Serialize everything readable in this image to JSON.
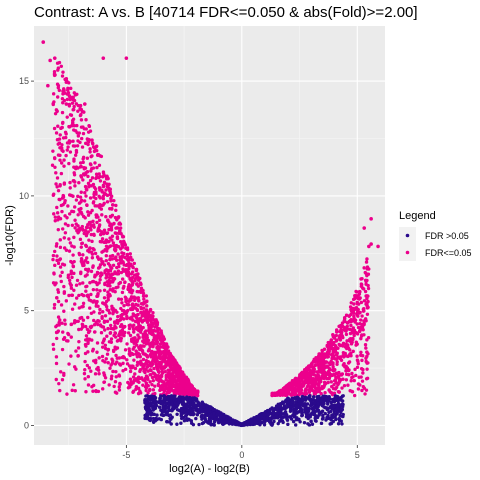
{
  "chart_data": {
    "type": "scatter",
    "title": "Contrast: A vs. B [40714 FDR<=0.050 & abs(Fold)>=2.00]",
    "xlabel": "log2(A) - log2(B)",
    "ylabel": "-log10(FDR)",
    "xlim": [
      -9.0,
      6.2
    ],
    "ylim": [
      -0.85,
      17.4
    ],
    "x_ticks": [
      -5,
      0,
      5
    ],
    "x_tick_labels": [
      "-5",
      "0",
      "5"
    ],
    "y_ticks": [
      0,
      5,
      10,
      15
    ],
    "y_tick_labels": [
      "0",
      "5",
      "10",
      "15"
    ],
    "grid": true,
    "legend": {
      "title": "Legend",
      "position": "right"
    },
    "fdr_threshold_neglog10": 1.3,
    "series": [
      {
        "name": "FDR >0.05",
        "color": "#2a0a8c",
        "envelope": [
          [
            -4.0,
            1.3
          ],
          [
            -3.0,
            1.3
          ],
          [
            -2.0,
            1.2
          ],
          [
            -1.0,
            0.6
          ],
          [
            0.0,
            0.05
          ],
          [
            1.0,
            0.6
          ],
          [
            2.0,
            1.2
          ],
          [
            3.0,
            1.3
          ],
          [
            4.3,
            1.3
          ]
        ],
        "points": []
      },
      {
        "name": "FDR<=0.05",
        "color": "#ec008c",
        "envelope_left": [
          [
            -8.0,
            16.0
          ],
          [
            -7.0,
            14.2
          ],
          [
            -6.0,
            11.5
          ],
          [
            -5.0,
            8.0
          ],
          [
            -4.0,
            5.3
          ],
          [
            -3.0,
            3.0
          ],
          [
            -2.0,
            1.5
          ]
        ],
        "envelope_right": [
          [
            1.5,
            1.4
          ],
          [
            2.5,
            2.2
          ],
          [
            3.5,
            3.3
          ],
          [
            4.5,
            4.8
          ],
          [
            5.0,
            6.0
          ],
          [
            5.5,
            7.5
          ]
        ],
        "points": [
          [
            -8.6,
            16.7
          ],
          [
            -8.3,
            15.9
          ],
          [
            -8.1,
            16.0
          ],
          [
            -7.6,
            15.1
          ],
          [
            -6.0,
            16.0
          ],
          [
            -5.0,
            16.0
          ],
          [
            -8.4,
            14.8
          ],
          [
            -7.7,
            14.6
          ],
          [
            -7.6,
            14.0
          ],
          [
            -7.3,
            14.2
          ],
          [
            -7.0,
            13.8
          ],
          [
            -6.8,
            14.0
          ],
          [
            5.6,
            9.0
          ],
          [
            5.3,
            8.6
          ],
          [
            5.9,
            7.8
          ],
          [
            5.5,
            7.8
          ],
          [
            5.6,
            7.9
          ]
        ]
      }
    ]
  }
}
